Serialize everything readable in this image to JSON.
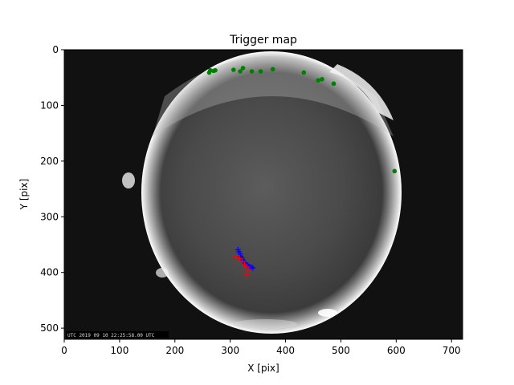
{
  "chart_data": {
    "type": "scatter",
    "title": "Trigger map",
    "xlabel": "X [pix]",
    "ylabel": "Y [pix]",
    "xlim": [
      0,
      720
    ],
    "ylim": [
      520,
      0
    ],
    "y_inverted": true,
    "background": "all-sky fisheye camera image",
    "image_timestamp": "UTC 2019 09 10 22:25:58.00 UTC",
    "xticks": [
      0,
      100,
      200,
      300,
      400,
      500,
      600,
      700
    ],
    "yticks": [
      0,
      100,
      200,
      300,
      400,
      500
    ],
    "colors": {
      "green_points": "#008000",
      "blue_track": "#0000ff",
      "red_track": "#ff0000"
    },
    "series": [
      {
        "color": "green",
        "marker": "circle",
        "points": [
          [
            262,
            41
          ],
          [
            264,
            37
          ],
          [
            270,
            38
          ],
          [
            273,
            37
          ],
          [
            306,
            36
          ],
          [
            318,
            39
          ],
          [
            323,
            33
          ],
          [
            339,
            39
          ],
          [
            355,
            39
          ],
          [
            377,
            35
          ],
          [
            433,
            41
          ],
          [
            459,
            55
          ],
          [
            466,
            53
          ],
          [
            487,
            61
          ],
          [
            597,
            218
          ]
        ]
      },
      {
        "color": "blue",
        "marker": "plus",
        "points": [
          [
            314,
            359
          ],
          [
            316,
            363
          ],
          [
            318,
            367
          ],
          [
            319,
            371
          ],
          [
            321,
            374
          ],
          [
            322,
            377
          ],
          [
            324,
            380
          ],
          [
            326,
            383
          ],
          [
            328,
            385
          ],
          [
            331,
            387
          ],
          [
            334,
            389
          ],
          [
            338,
            390
          ],
          [
            341,
            392
          ]
        ]
      },
      {
        "color": "red",
        "marker": "plus",
        "points": [
          [
            310,
            372
          ],
          [
            317,
            375
          ],
          [
            322,
            380
          ],
          [
            326,
            386
          ],
          [
            330,
            390
          ],
          [
            333,
            396
          ],
          [
            330,
            404
          ]
        ]
      }
    ]
  }
}
